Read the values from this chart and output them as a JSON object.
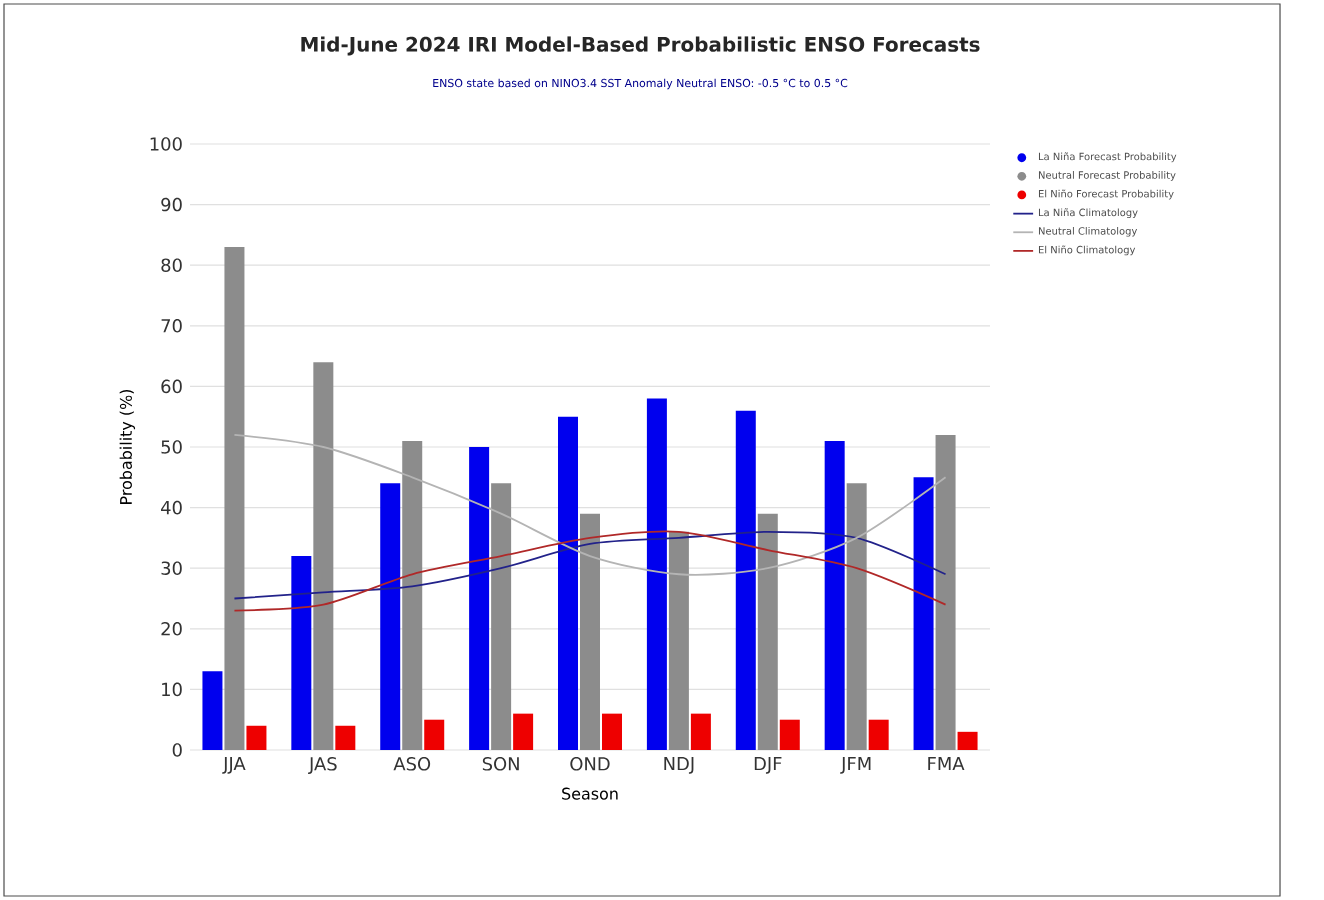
{
  "chart_data": {
    "type": "bar",
    "title": "Mid-June 2024 IRI Model-Based Probabilistic ENSO Forecasts",
    "subtitle": "ENSO state based on NINO3.4 SST Anomaly Neutral ENSO: -0.5 °C to 0.5 °C",
    "xlabel": "Season",
    "ylabel": "Probability (%)",
    "categories": [
      "JJA",
      "JAS",
      "ASO",
      "SON",
      "OND",
      "NDJ",
      "DJF",
      "JFM",
      "FMA"
    ],
    "series": [
      {
        "name": "La Niña Forecast Probability",
        "color": "#0000ee",
        "values": [
          13,
          32,
          44,
          50,
          55,
          58,
          56,
          51,
          45
        ]
      },
      {
        "name": "Neutral Forecast Probability",
        "color": "#8c8c8c",
        "values": [
          83,
          64,
          51,
          44,
          39,
          36,
          39,
          44,
          52
        ]
      },
      {
        "name": "El Niño Forecast Probability",
        "color": "#ee0000",
        "values": [
          4,
          4,
          5,
          6,
          6,
          6,
          5,
          5,
          3
        ]
      },
      {
        "name": "La Niña Climatology",
        "type": "line",
        "color": "#22228a",
        "values": [
          25,
          26,
          27,
          30,
          34,
          35,
          36,
          35,
          29
        ]
      },
      {
        "name": "Neutral Climatology",
        "type": "line",
        "color": "#b4b4b4",
        "values": [
          52,
          50,
          45,
          39,
          32,
          29,
          30,
          35,
          45
        ]
      },
      {
        "name": "El Niño Climatology",
        "type": "line",
        "color": "#b02828",
        "values": [
          23,
          24,
          29,
          32,
          35,
          36,
          33,
          30,
          24
        ]
      }
    ],
    "ylim": [
      0,
      100
    ],
    "yticks": [
      0,
      10,
      20,
      30,
      40,
      50,
      60,
      70,
      80,
      90,
      100
    ],
    "grid": "y",
    "legend": "right"
  }
}
